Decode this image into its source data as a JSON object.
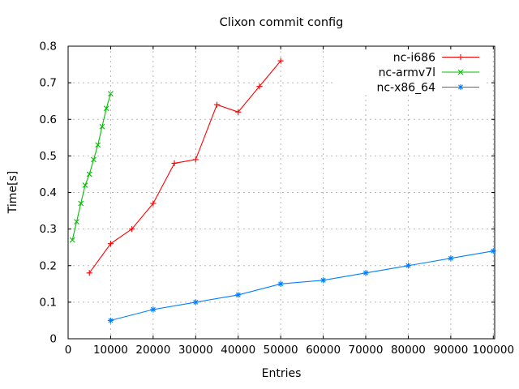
{
  "chart_data": {
    "type": "line",
    "title": "Clixon commit config",
    "xlabel": "Entries",
    "ylabel": "Time[s]",
    "xlim": [
      0,
      100000
    ],
    "ylim": [
      0,
      0.8
    ],
    "x_ticks": [
      0,
      10000,
      20000,
      30000,
      40000,
      50000,
      60000,
      70000,
      80000,
      90000,
      100000
    ],
    "x_tick_labels": [
      "0",
      "10000",
      "20000",
      "30000",
      "40000",
      "50000",
      "60000",
      "70000",
      "80000",
      "90000",
      "100000"
    ],
    "y_ticks": [
      0,
      0.1,
      0.2,
      0.3,
      0.4,
      0.5,
      0.6,
      0.7,
      0.8
    ],
    "y_tick_labels": [
      "0",
      "0.1",
      "0.2",
      "0.3",
      "0.4",
      "0.5",
      "0.6",
      "0.7",
      "0.8"
    ],
    "grid": true,
    "grid_color": "#b8b8b8",
    "border_color": "#000000",
    "legend_position": "top-right-inside",
    "legend_entries": [
      "nc-i686",
      "nc-armv7l",
      "nc-x86_64"
    ],
    "series": [
      {
        "name": "nc-i686",
        "color": "#ff0000",
        "marker": "plus",
        "x": [
          5000,
          10000,
          15000,
          20000,
          25000,
          30000,
          35000,
          40000,
          45000,
          50000
        ],
        "y": [
          0.18,
          0.26,
          0.3,
          0.37,
          0.48,
          0.49,
          0.64,
          0.62,
          0.69,
          0.76
        ]
      },
      {
        "name": "nc-armv7l",
        "color": "#00c000",
        "marker": "cross",
        "x": [
          1000,
          2000,
          3000,
          4000,
          5000,
          6000,
          7000,
          8000,
          9000,
          10000
        ],
        "y": [
          0.27,
          0.32,
          0.37,
          0.42,
          0.45,
          0.49,
          0.53,
          0.58,
          0.63,
          0.67
        ]
      },
      {
        "name": "nc-x86_64",
        "color": "#0080ff",
        "marker": "asterisk",
        "x": [
          10000,
          20000,
          30000,
          40000,
          50000,
          60000,
          70000,
          80000,
          90000,
          100000
        ],
        "y": [
          0.05,
          0.08,
          0.1,
          0.12,
          0.15,
          0.16,
          0.18,
          0.2,
          0.22,
          0.24
        ]
      }
    ]
  }
}
